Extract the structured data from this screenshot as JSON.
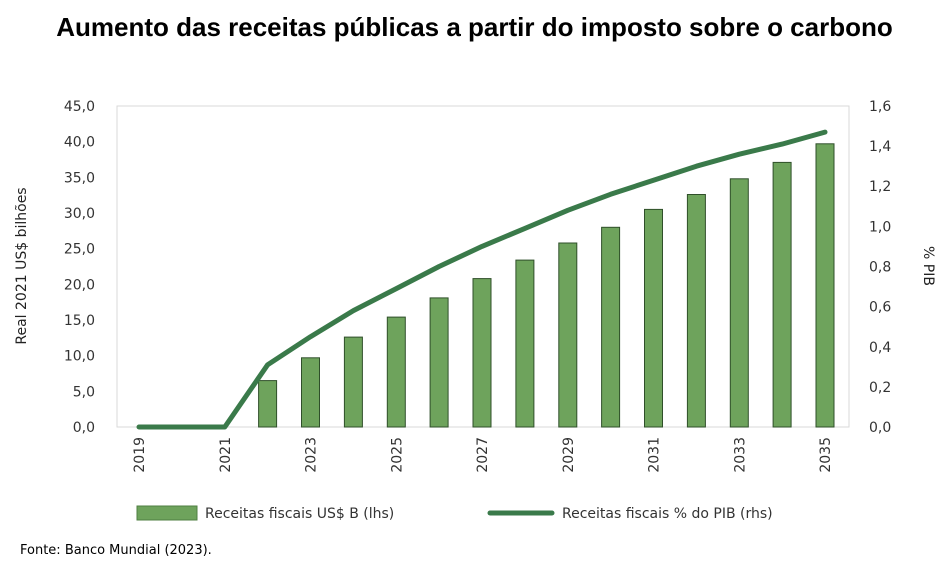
{
  "title": "Aumento das receitas públicas a partir do imposto sobre o carbono",
  "source": "Fonte: Banco Mundial (2023).",
  "chart_data": {
    "type": "bar",
    "x": [
      2019,
      2020,
      2021,
      2022,
      2023,
      2024,
      2025,
      2026,
      2027,
      2028,
      2029,
      2030,
      2031,
      2032,
      2033,
      2034,
      2035
    ],
    "x_tick_labels": [
      "2019",
      "2021",
      "2023",
      "2025",
      "2027",
      "2029",
      "2031",
      "2033",
      "2035"
    ],
    "series": [
      {
        "name": "Receitas fiscais US$ B (lhs)",
        "kind": "bar",
        "axis": "left",
        "color": "#6ea35c",
        "values": [
          null,
          null,
          null,
          6.5,
          9.7,
          12.6,
          15.4,
          18.1,
          20.8,
          23.4,
          25.8,
          28.0,
          30.5,
          32.6,
          34.8,
          37.1,
          39.7
        ]
      },
      {
        "name": "Receitas fiscais % do PIB (rhs)",
        "kind": "line",
        "axis": "right",
        "color": "#3a7a4a",
        "values": [
          0.0,
          0.0,
          0.0,
          0.31,
          0.45,
          0.58,
          0.69,
          0.8,
          0.9,
          0.99,
          1.08,
          1.16,
          1.23,
          1.3,
          1.36,
          1.41,
          1.47
        ]
      }
    ],
    "y_left": {
      "label": "Real 2021 US$ bilhões",
      "range": [
        0,
        45
      ],
      "ticks": [
        "0,0",
        "5,0",
        "10,0",
        "15,0",
        "20,0",
        "25,0",
        "30,0",
        "35,0",
        "40,0",
        "45,0"
      ]
    },
    "y_right": {
      "label": "% PIB",
      "range": [
        0,
        1.6
      ],
      "ticks": [
        "0,0",
        "0,2",
        "0,4",
        "0,6",
        "0,8",
        "1,0",
        "1,2",
        "1,4",
        "1,6"
      ]
    },
    "grid": false,
    "legend_position": "bottom"
  }
}
